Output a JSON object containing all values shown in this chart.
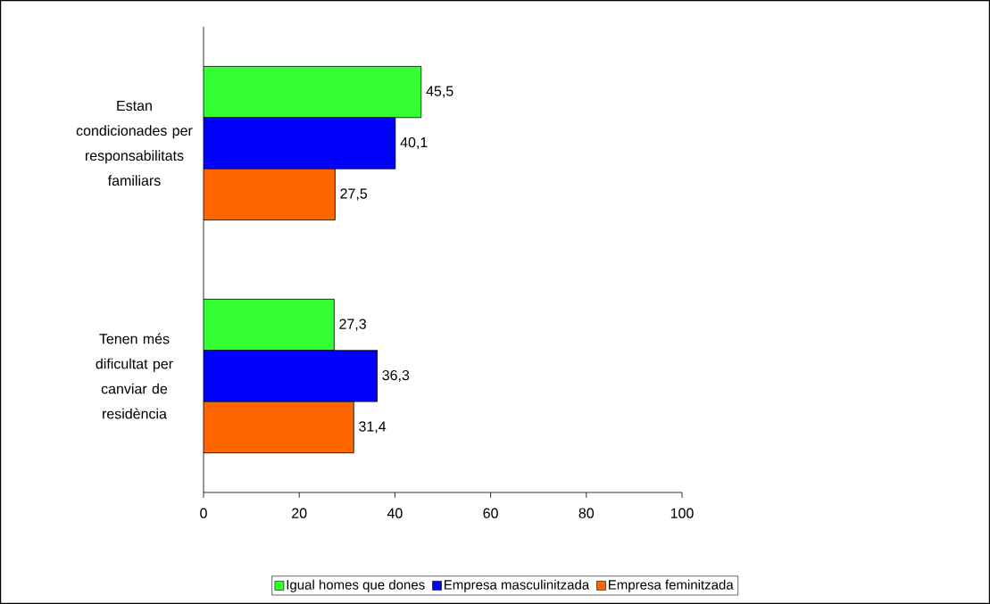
{
  "chart_data": {
    "type": "bar",
    "orientation": "horizontal",
    "categories": [
      "Estan condicionades per responsabilitats familiars",
      "Tenen més dificultat per canviar de residència"
    ],
    "series": [
      {
        "name": "Igual homes que dones",
        "color": "#33ff33",
        "values": [
          45.5,
          27.3
        ],
        "value_labels": [
          "45,5",
          "27,3"
        ]
      },
      {
        "name": "Empresa masculinitzada",
        "color": "#0000ff",
        "values": [
          40.1,
          36.3
        ],
        "value_labels": [
          "40,1",
          "36,3"
        ]
      },
      {
        "name": "Empresa feminitzada",
        "color": "#ff6600",
        "values": [
          27.5,
          31.4
        ],
        "value_labels": [
          "27,5",
          "31,4"
        ]
      }
    ],
    "xlim": [
      0,
      100
    ],
    "xticks": [
      0,
      20,
      40,
      60,
      80,
      100
    ],
    "grid": false,
    "legend": "bottom"
  }
}
